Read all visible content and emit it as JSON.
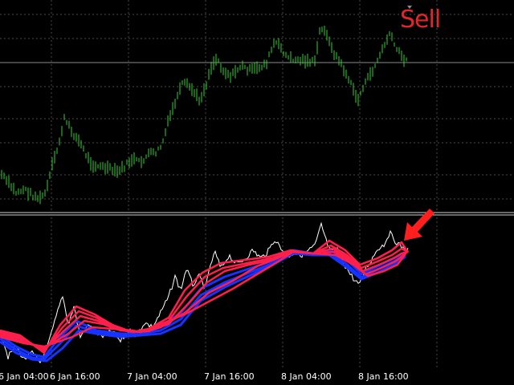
{
  "signal": {
    "text": "Sell",
    "color": "#e0262a"
  },
  "time_axis": {
    "labels": [
      "6 Jan 04:00",
      "6 Jan 16:00",
      "7 Jan 04:00",
      "7 Jan 16:00",
      "8 Jan 04:00",
      "8 Jan 16:00"
    ]
  },
  "colors": {
    "background": "#000000",
    "price_bars": "#2fd12f",
    "grid": "#4a4a4a",
    "separator": "#d0d0d0",
    "oscillator_raw": "#ffffff",
    "fast_lines": "#1633ff",
    "slow_lines": "#ff1f4b",
    "arrow": "#ff1f1f"
  },
  "icons": {
    "signal_arrow": "down-left-arrow-icon",
    "bar_marker": "triangle-down-icon"
  }
}
